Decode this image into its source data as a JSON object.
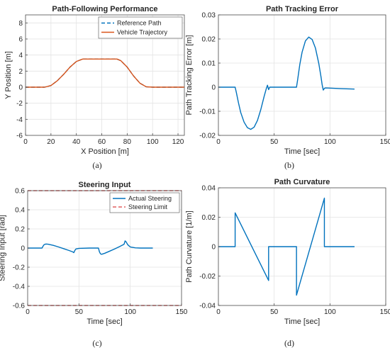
{
  "chart_data": [
    {
      "type": "line",
      "title": "Path-Following Performance",
      "xlabel": "X Position [m]",
      "ylabel": "Y Position [m]",
      "xlim": [
        0,
        125
      ],
      "ylim": [
        -6,
        9
      ],
      "xticks": [
        0,
        20,
        40,
        60,
        80,
        100,
        120
      ],
      "yticks": [
        -6,
        -4,
        -2,
        0,
        2,
        4,
        6,
        8
      ],
      "grid": true,
      "legend": "top-right",
      "subcaption": "(a)",
      "series": [
        {
          "name": "Reference Path",
          "style": "dashed",
          "color": "#0072BD",
          "x": [
            0,
            15,
            20,
            25,
            30,
            35,
            40,
            45,
            55,
            65,
            72,
            75,
            80,
            85,
            90,
            95,
            100,
            125
          ],
          "y": [
            0,
            0,
            0.2,
            0.8,
            1.6,
            2.5,
            3.2,
            3.5,
            3.5,
            3.5,
            3.5,
            3.3,
            2.5,
            1.4,
            0.5,
            0.05,
            0,
            0
          ]
        },
        {
          "name": "Vehicle Trajectory",
          "style": "solid",
          "color": "#D95319",
          "x": [
            0,
            15,
            20,
            25,
            30,
            35,
            40,
            45,
            55,
            65,
            72,
            75,
            80,
            85,
            90,
            95,
            100,
            125
          ],
          "y": [
            0,
            0,
            0.2,
            0.8,
            1.6,
            2.5,
            3.2,
            3.5,
            3.5,
            3.5,
            3.5,
            3.3,
            2.5,
            1.4,
            0.5,
            0.05,
            0,
            0
          ]
        }
      ]
    },
    {
      "type": "line",
      "title": "Path Tracking Error",
      "xlabel": "Time [sec]",
      "ylabel": "Path Tracking Error [m]",
      "xlim": [
        0,
        150
      ],
      "ylim": [
        -0.02,
        0.03
      ],
      "xticks": [
        0,
        50,
        100,
        150
      ],
      "yticks": [
        -0.02,
        -0.01,
        0,
        0.01,
        0.02,
        0.03
      ],
      "grid": true,
      "subcaption": "(b)",
      "series": [
        {
          "color": "#0072BD",
          "x": [
            0,
            15,
            16,
            18,
            20,
            23,
            26,
            29,
            32,
            35,
            38,
            41,
            43,
            44,
            45,
            46,
            70,
            71,
            73,
            75,
            78,
            81,
            84,
            87,
            90,
            92,
            93,
            94,
            95,
            96,
            100,
            110,
            122
          ],
          "y": [
            0,
            0,
            -0.002,
            -0.0065,
            -0.0105,
            -0.0145,
            -0.0168,
            -0.0175,
            -0.0166,
            -0.0138,
            -0.0093,
            -0.0038,
            -0.0005,
            0.0008,
            -0.001,
            0,
            0,
            0.003,
            0.0095,
            0.0145,
            0.0192,
            0.0208,
            0.0198,
            0.0162,
            0.0098,
            0.0042,
            0.001,
            -0.0012,
            -0.0005,
            -0.0003,
            -0.0004,
            -0.0006,
            -0.0008
          ]
        }
      ]
    },
    {
      "type": "line",
      "title": "Steering Input",
      "xlabel": "Time [sec]",
      "ylabel": "Steering Input [rad]",
      "xlim": [
        0,
        150
      ],
      "ylim": [
        -0.6,
        0.6
      ],
      "xticks": [
        0,
        50,
        100,
        150
      ],
      "yticks": [
        -0.6,
        -0.4,
        -0.2,
        0,
        0.2,
        0.4,
        0.6
      ],
      "grid": true,
      "legend": "top-right",
      "subcaption": "(c)",
      "series": [
        {
          "name": "Actual Steering",
          "style": "solid",
          "color": "#0072BD",
          "x": [
            0,
            14,
            15,
            16,
            17,
            18,
            20,
            25,
            30,
            35,
            40,
            44,
            45,
            46,
            47,
            50,
            60,
            69,
            70,
            71,
            72,
            75,
            80,
            85,
            90,
            94,
            95,
            96,
            97,
            98,
            100,
            105,
            110,
            122
          ],
          "y": [
            0,
            0,
            0.02,
            0.035,
            0.04,
            0.042,
            0.04,
            0.028,
            0.012,
            -0.006,
            -0.024,
            -0.04,
            -0.048,
            -0.025,
            -0.01,
            -0.003,
            0,
            0,
            -0.04,
            -0.06,
            -0.065,
            -0.055,
            -0.032,
            -0.008,
            0.018,
            0.04,
            0.075,
            0.065,
            0.045,
            0.03,
            0.012,
            0.002,
            0,
            0
          ]
        },
        {
          "name": "Steering Limit",
          "style": "dashed",
          "color": "#E06060",
          "x": [
            0,
            150
          ],
          "y": [
            0.6,
            0.6
          ]
        },
        {
          "name": "",
          "style": "dashed",
          "color": "#E06060",
          "x": [
            0,
            150
          ],
          "y": [
            -0.6,
            -0.6
          ]
        }
      ]
    },
    {
      "type": "line",
      "title": "Path Curvature",
      "xlabel": "Time [sec]",
      "ylabel": "Path Curvature [1/m]",
      "xlim": [
        0,
        150
      ],
      "ylim": [
        -0.04,
        0.04
      ],
      "xticks": [
        0,
        50,
        100,
        150
      ],
      "yticks": [
        -0.04,
        -0.02,
        0,
        0.02,
        0.04
      ],
      "grid": true,
      "subcaption": "(d)",
      "series": [
        {
          "color": "#0072BD",
          "x": [
            0,
            15,
            15,
            45,
            45,
            70,
            70,
            95,
            95,
            122
          ],
          "y": [
            0,
            0,
            0.023,
            -0.023,
            0,
            0,
            -0.033,
            0.033,
            0,
            0
          ]
        }
      ]
    }
  ]
}
